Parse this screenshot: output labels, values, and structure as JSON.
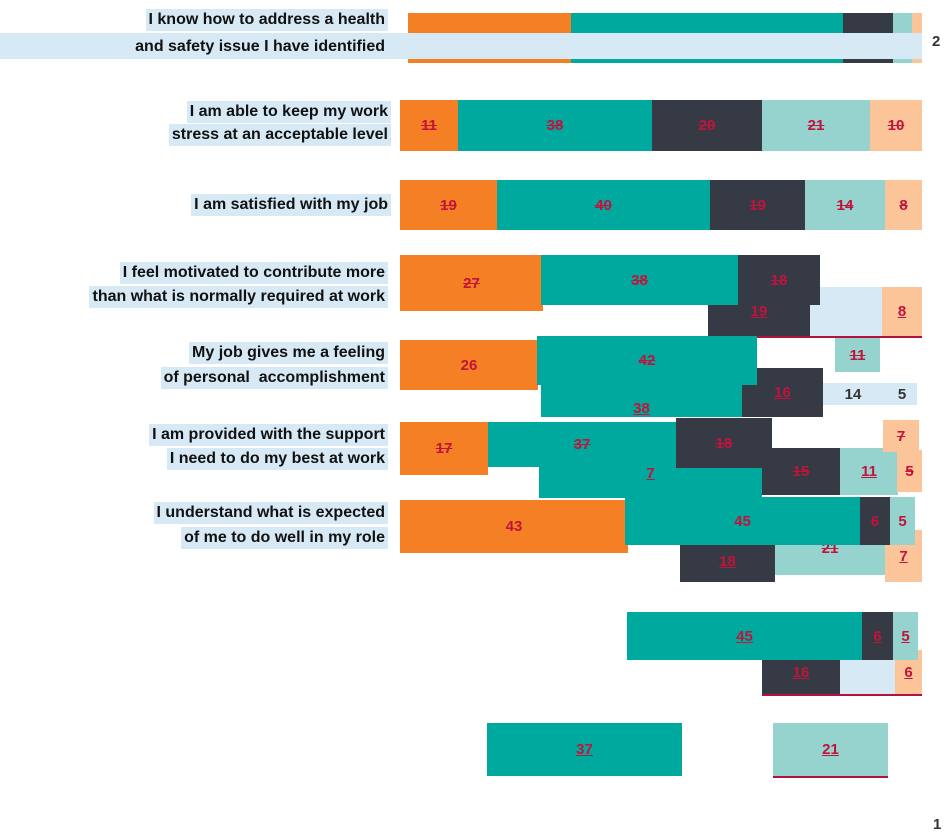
{
  "statements": [
    [
      "I know how to address a health",
      "and safety issue I have identified"
    ],
    [
      "I am able to keep my work",
      "stress at an acceptable level"
    ],
    [
      "I am satisfied with my job"
    ],
    [
      "I feel motivated to contribute more",
      "than what is normally required at work"
    ],
    [
      "My job gives me a feeling",
      "of personal  accomplishment"
    ],
    [
      "I am provided with the support",
      "I need to do my best at work"
    ],
    [
      "I understand what is expected",
      "of me to do well in my role"
    ]
  ],
  "boxes": [
    11,
    38,
    20,
    21,
    10,
    19,
    40,
    19,
    14,
    8,
    27,
    38,
    18,
    19,
    8,
    26,
    42,
    11,
    38,
    16,
    14,
    5,
    17,
    37,
    18,
    7,
    15,
    11,
    7,
    5,
    43,
    45,
    6,
    5,
    18,
    21,
    7,
    45,
    6,
    5,
    16,
    6,
    37,
    21
  ],
  "side_label": 2,
  "slide_number": 1
}
